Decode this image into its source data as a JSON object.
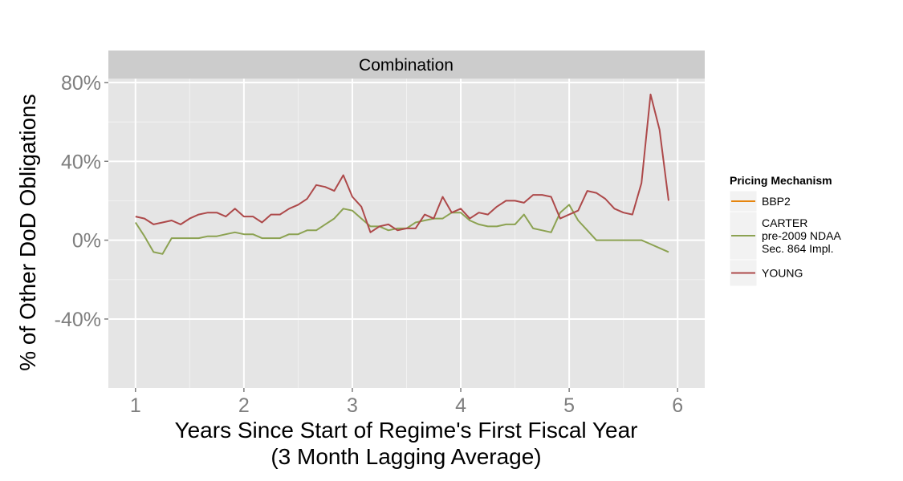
{
  "chart_data": {
    "type": "line",
    "facet_title": "Combination",
    "xlabel": "Years Since Start of Regime's First Fiscal Year",
    "xlabel_sub": "(3 Month Lagging Average)",
    "ylabel": "% of Other DoD Obligations",
    "xlim": [
      0.75,
      6.25
    ],
    "ylim": [
      -0.75,
      0.82
    ],
    "x_ticks": [
      1,
      2,
      3,
      4,
      5,
      6
    ],
    "x_tick_labels": [
      "1",
      "2",
      "3",
      "4",
      "5",
      "6"
    ],
    "y_ticks": [
      -0.4,
      0,
      0.4,
      0.8
    ],
    "y_tick_labels": [
      "-40%",
      "0%",
      "40%",
      "80%"
    ],
    "grid": true,
    "legend": {
      "title": "Pricing Mechanism",
      "position": "right",
      "entries": [
        {
          "label_lines": [
            "BBP2"
          ],
          "color": "#E6850E"
        },
        {
          "label_lines": [
            "CARTER",
            "pre-2009 NDAA",
            "Sec. 864 Impl."
          ],
          "color": "#8CA252"
        },
        {
          "label_lines": [
            "YOUNG"
          ],
          "color": "#AD494A"
        }
      ]
    },
    "series": [
      {
        "name": "CARTER",
        "color": "#8CA252",
        "x": [
          1.0,
          1.083,
          1.167,
          1.25,
          1.333,
          1.417,
          1.5,
          1.583,
          1.667,
          1.75,
          1.833,
          1.917,
          2.0,
          2.083,
          2.167,
          2.25,
          2.333,
          2.417,
          2.5,
          2.583,
          2.667,
          2.75,
          2.833,
          2.917,
          3.0,
          3.083,
          3.167,
          3.25,
          3.333,
          3.417,
          3.5,
          3.583,
          3.667,
          3.75,
          3.833,
          3.917,
          4.0,
          4.083,
          4.167,
          4.25,
          4.333,
          4.417,
          4.5,
          4.583,
          4.667,
          4.75,
          4.833,
          4.917,
          5.0,
          5.083,
          5.167,
          5.25,
          5.333,
          5.417,
          5.5,
          5.583,
          5.667,
          5.75,
          5.833,
          5.917
        ],
        "y": [
          0.09,
          0.02,
          -0.06,
          -0.07,
          0.01,
          0.01,
          0.01,
          0.01,
          0.02,
          0.02,
          0.03,
          0.04,
          0.03,
          0.03,
          0.01,
          0.01,
          0.01,
          0.03,
          0.03,
          0.05,
          0.05,
          0.08,
          0.11,
          0.16,
          0.15,
          0.11,
          0.07,
          0.07,
          0.05,
          0.06,
          0.06,
          0.09,
          0.1,
          0.11,
          0.11,
          0.14,
          0.14,
          0.1,
          0.08,
          0.07,
          0.07,
          0.08,
          0.08,
          0.13,
          0.06,
          0.05,
          0.04,
          0.14,
          0.18,
          0.1,
          0.05,
          0.0,
          0.0,
          0.0,
          -0.0,
          -0.0,
          -0.0,
          -0.02,
          -0.04,
          -0.06
        ]
      },
      {
        "name": "YOUNG",
        "color": "#AD494A",
        "x": [
          1.0,
          1.083,
          1.167,
          1.25,
          1.333,
          1.417,
          1.5,
          1.583,
          1.667,
          1.75,
          1.833,
          1.917,
          2.0,
          2.083,
          2.167,
          2.25,
          2.333,
          2.417,
          2.5,
          2.583,
          2.667,
          2.75,
          2.833,
          2.917,
          3.0,
          3.083,
          3.167,
          3.25,
          3.333,
          3.417,
          3.5,
          3.583,
          3.667,
          3.75,
          3.833,
          3.917,
          4.0,
          4.083,
          4.167,
          4.25,
          4.333,
          4.417,
          4.5,
          4.583,
          4.667,
          4.75,
          4.833,
          4.917,
          5.0,
          5.083,
          5.167,
          5.25,
          5.333,
          5.417,
          5.5,
          5.583,
          5.667,
          5.75,
          5.833,
          5.917
        ],
        "y": [
          0.12,
          0.11,
          0.08,
          0.09,
          0.1,
          0.08,
          0.11,
          0.13,
          0.14,
          0.14,
          0.12,
          0.16,
          0.12,
          0.12,
          0.09,
          0.13,
          0.13,
          0.16,
          0.18,
          0.21,
          0.28,
          0.27,
          0.25,
          0.33,
          0.22,
          0.17,
          0.04,
          0.07,
          0.08,
          0.05,
          0.06,
          0.06,
          0.13,
          0.11,
          0.22,
          0.14,
          0.16,
          0.11,
          0.14,
          0.13,
          0.17,
          0.2,
          0.2,
          0.19,
          0.23,
          0.23,
          0.22,
          0.11,
          0.13,
          0.15,
          0.25,
          0.24,
          0.21,
          0.16,
          0.14,
          0.13,
          0.29,
          0.74,
          0.56,
          0.2
        ]
      }
    ]
  }
}
